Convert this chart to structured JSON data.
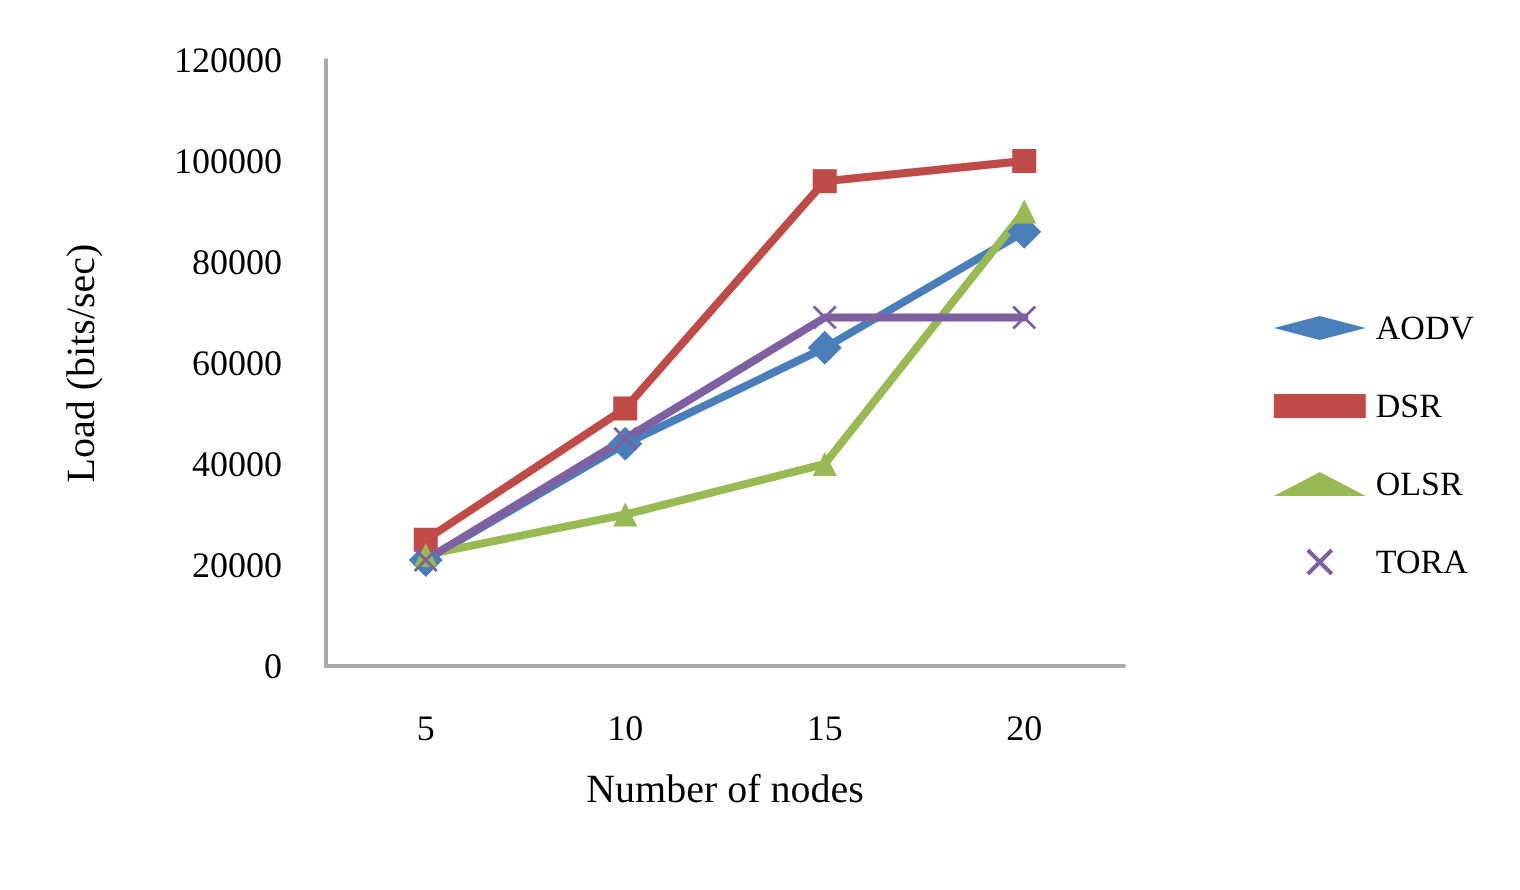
{
  "chart_data": {
    "type": "line",
    "xlabel": "Number of nodes",
    "ylabel": "Load (bits/sec)",
    "categories": [
      "5",
      "10",
      "15",
      "20"
    ],
    "series": [
      {
        "name": "AODV",
        "color": "#4a7ebb",
        "marker": "diamond",
        "values": [
          21000,
          44000,
          63000,
          86000
        ]
      },
      {
        "name": "DSR",
        "color": "#be4b48",
        "marker": "square",
        "values": [
          25000,
          51000,
          96000,
          100000
        ]
      },
      {
        "name": "OLSR",
        "color": "#98b954",
        "marker": "triangle",
        "values": [
          22000,
          30000,
          40000,
          90000
        ]
      },
      {
        "name": "TORA",
        "color": "#7d60a0",
        "marker": "cross",
        "values": [
          21000,
          45000,
          69000,
          69000
        ]
      }
    ],
    "ylim": [
      0,
      120000
    ],
    "yticks": [
      0,
      20000,
      40000,
      60000,
      80000,
      100000,
      120000
    ],
    "grid": false,
    "legend": "right"
  }
}
